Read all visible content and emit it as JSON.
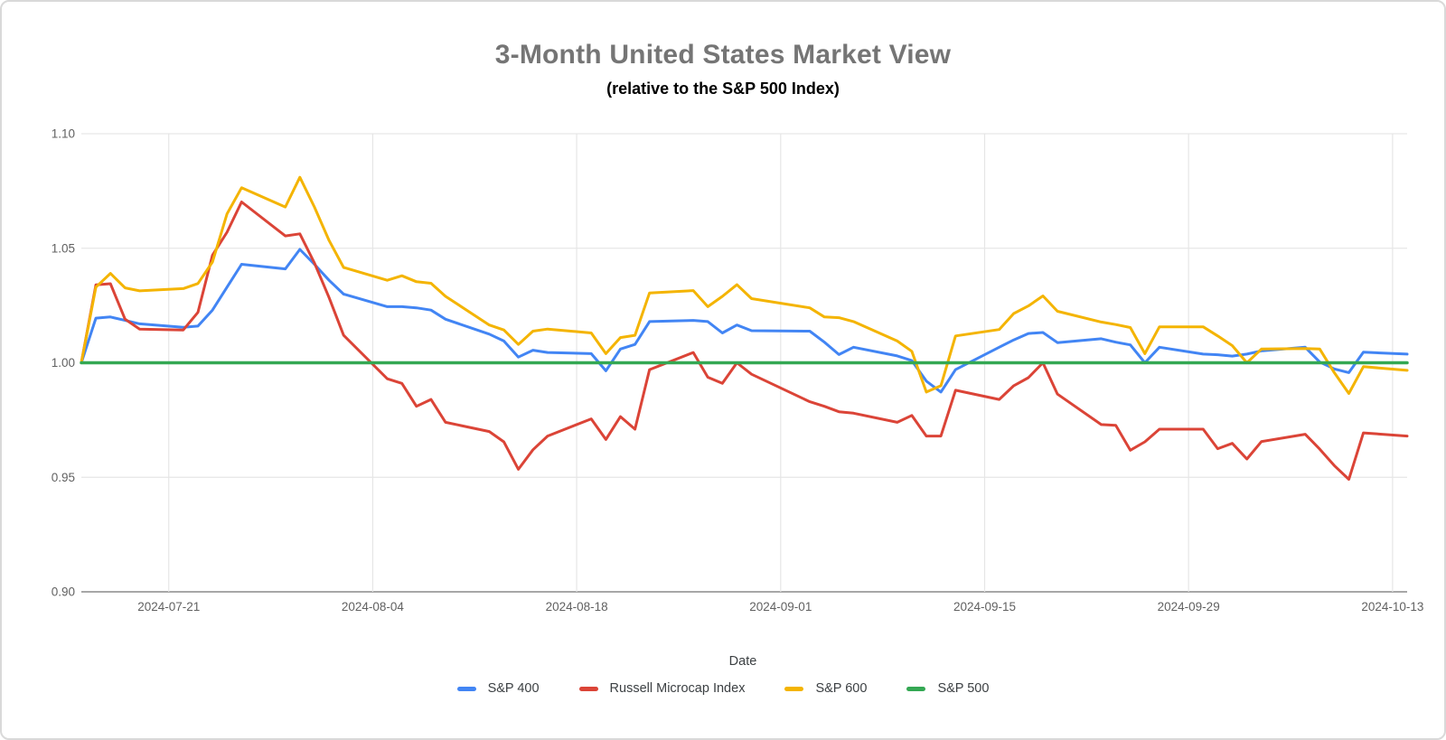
{
  "title": "3-Month United States Market View",
  "subtitle": "(relative to the S&P 500 Index)",
  "x_axis": {
    "label": "Date"
  },
  "y_axis": {
    "tick_labels": [
      "1.10",
      "1.05",
      "1.00",
      "0.95",
      "0.90"
    ]
  },
  "style": {
    "title_color": "#757575",
    "subtitle_color": "#000000",
    "grid_color": "#e6e6e6",
    "axis_line_color": "#8a8a8a",
    "tick_label_color": "#616161",
    "legend_text_color": "#3c4043",
    "background": "#ffffff",
    "border_color": "#d9d9d9"
  },
  "chart_data": {
    "type": "line",
    "title": "3-Month United States Market View",
    "subtitle": "(relative to the S&P 500 Index)",
    "xlabel": "Date",
    "ylabel": "",
    "ylim": [
      0.9,
      1.1
    ],
    "y_ticks": [
      1.1,
      1.05,
      1.0,
      0.95,
      0.9
    ],
    "x_tick_dates": [
      "2024-07-21",
      "2024-08-04",
      "2024-08-18",
      "2024-09-01",
      "2024-09-15",
      "2024-09-29",
      "2024-10-13"
    ],
    "grid": true,
    "legend_position": "bottom",
    "baseline_value": 1.0,
    "x": [
      "2024-07-15",
      "2024-07-16",
      "2024-07-17",
      "2024-07-18",
      "2024-07-19",
      "2024-07-22",
      "2024-07-23",
      "2024-07-24",
      "2024-07-25",
      "2024-07-26",
      "2024-07-29",
      "2024-07-30",
      "2024-07-31",
      "2024-08-01",
      "2024-08-02",
      "2024-08-05",
      "2024-08-06",
      "2024-08-07",
      "2024-08-08",
      "2024-08-09",
      "2024-08-12",
      "2024-08-13",
      "2024-08-14",
      "2024-08-15",
      "2024-08-16",
      "2024-08-19",
      "2024-08-20",
      "2024-08-21",
      "2024-08-22",
      "2024-08-23",
      "2024-08-26",
      "2024-08-27",
      "2024-08-28",
      "2024-08-29",
      "2024-08-30",
      "2024-09-03",
      "2024-09-04",
      "2024-09-05",
      "2024-09-06",
      "2024-09-09",
      "2024-09-10",
      "2024-09-11",
      "2024-09-12",
      "2024-09-13",
      "2024-09-16",
      "2024-09-17",
      "2024-09-18",
      "2024-09-19",
      "2024-09-20",
      "2024-09-23",
      "2024-09-24",
      "2024-09-25",
      "2024-09-26",
      "2024-09-27",
      "2024-09-30",
      "2024-10-01",
      "2024-10-02",
      "2024-10-03",
      "2024-10-04",
      "2024-10-07",
      "2024-10-08",
      "2024-10-09",
      "2024-10-10",
      "2024-10-11",
      "2024-10-14"
    ],
    "series": [
      {
        "name": "S&P 400",
        "color": "#4285f4",
        "values": [
          1.0,
          1.0195,
          1.02,
          1.0185,
          1.017,
          1.0155,
          1.016,
          1.023,
          1.033,
          1.043,
          1.041,
          1.0495,
          1.043,
          1.036,
          1.03,
          1.0245,
          1.0245,
          1.024,
          1.023,
          1.019,
          1.0125,
          1.0095,
          1.0025,
          1.0055,
          1.0045,
          1.004,
          0.9965,
          1.006,
          1.008,
          1.018,
          1.0185,
          1.018,
          1.013,
          1.0165,
          1.014,
          1.0138,
          1.009,
          1.0036,
          1.0068,
          1.003,
          1.001,
          0.992,
          0.9872,
          0.997,
          1.0068,
          1.01,
          1.0128,
          1.0132,
          1.0088,
          1.0105,
          1.009,
          1.0078,
          1.0,
          1.0068,
          1.0038,
          1.0035,
          1.0029,
          1.0038,
          1.0052,
          1.0068,
          1.0003,
          0.9973,
          0.9957,
          1.0046,
          1.0038
        ]
      },
      {
        "name": "Russell Microcap Index",
        "color": "#db4437",
        "values": [
          1.0,
          1.034,
          1.0345,
          1.019,
          1.0147,
          1.0143,
          1.022,
          1.047,
          1.057,
          1.0702,
          1.0554,
          1.0563,
          1.0436,
          1.0285,
          1.012,
          0.993,
          0.991,
          0.981,
          0.984,
          0.974,
          0.97,
          0.9655,
          0.9535,
          0.962,
          0.968,
          0.9755,
          0.9665,
          0.9765,
          0.971,
          0.997,
          1.0045,
          0.9937,
          0.991,
          1.0,
          0.995,
          0.983,
          0.981,
          0.9786,
          0.978,
          0.974,
          0.977,
          0.968,
          0.968,
          0.988,
          0.984,
          0.99,
          0.9935,
          1.0,
          0.9863,
          0.973,
          0.9727,
          0.9618,
          0.9655,
          0.971,
          0.971,
          0.9625,
          0.9648,
          0.958,
          0.9656,
          0.9688,
          0.9623,
          0.9551,
          0.9491,
          0.9694,
          0.968
        ]
      },
      {
        "name": "S&P 600",
        "color": "#f4b400",
        "values": [
          1.0,
          1.033,
          1.039,
          1.0327,
          1.0314,
          1.0324,
          1.0346,
          1.044,
          1.065,
          1.0764,
          1.068,
          1.081,
          1.068,
          1.0534,
          1.0416,
          1.036,
          1.038,
          1.0354,
          1.0347,
          1.029,
          1.0165,
          1.0143,
          1.008,
          1.0138,
          1.0147,
          1.013,
          1.004,
          1.011,
          1.012,
          1.0305,
          1.0315,
          1.0245,
          1.029,
          1.0341,
          1.028,
          1.024,
          1.02,
          1.0197,
          1.018,
          1.0095,
          1.005,
          0.9872,
          0.99,
          1.0117,
          1.0145,
          1.0215,
          1.0248,
          1.0292,
          1.0225,
          1.0178,
          1.0167,
          1.0154,
          1.004,
          1.0157,
          1.0157,
          1.0117,
          1.0075,
          1.0,
          1.006,
          1.0062,
          1.006,
          0.9957,
          0.9866,
          0.9983,
          0.9967
        ]
      },
      {
        "name": "S&P 500",
        "color": "#34a853",
        "constant": 1.0
      }
    ]
  }
}
